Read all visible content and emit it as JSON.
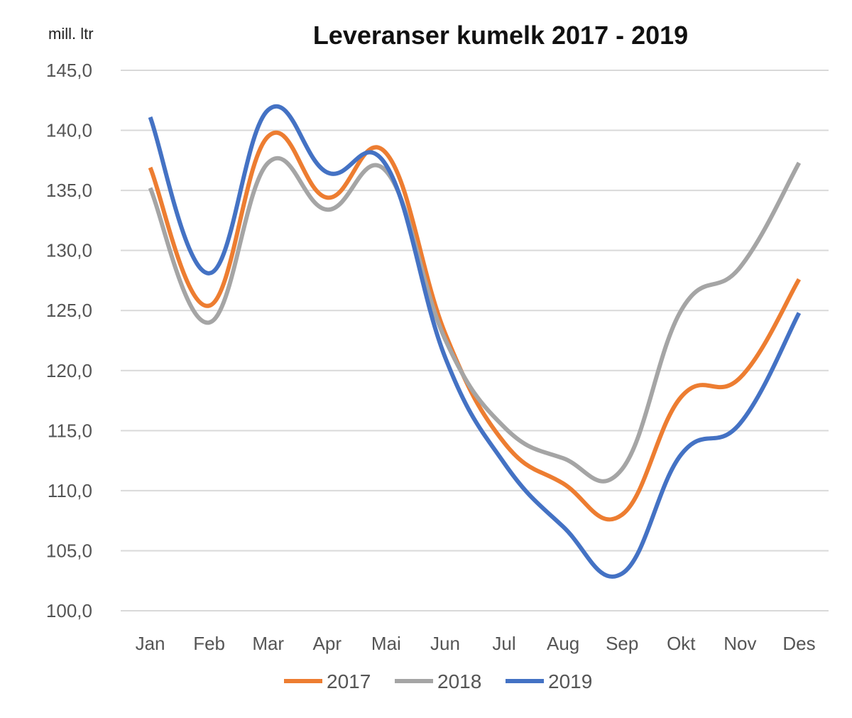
{
  "chart_data": {
    "type": "line",
    "title": "Leveranser kumelk 2017 - 2019",
    "ylabel": "mill. ltr",
    "xlabel": "",
    "categories": [
      "Jan",
      "Feb",
      "Mar",
      "Apr",
      "Mai",
      "Jun",
      "Jul",
      "Aug",
      "Sep",
      "Okt",
      "Nov",
      "Des"
    ],
    "ylim": [
      100,
      145
    ],
    "yticks": [
      100,
      105,
      110,
      115,
      120,
      125,
      130,
      135,
      140,
      145
    ],
    "ytick_labels": [
      "100,0",
      "105,0",
      "110,0",
      "115,0",
      "120,0",
      "125,0",
      "130,0",
      "135,0",
      "140,0",
      "145,0"
    ],
    "grid": true,
    "smooth": true,
    "legend_position": "bottom",
    "series": [
      {
        "name": "2017",
        "color": "#ED7D31",
        "values": [
          136.9,
          125.4,
          139.5,
          134.4,
          138.1,
          123.1,
          114.0,
          110.6,
          108.0,
          117.8,
          119.4,
          127.6
        ]
      },
      {
        "name": "2018",
        "color": "#A5A5A5",
        "values": [
          135.2,
          124.0,
          137.3,
          133.4,
          136.6,
          122.6,
          115.3,
          112.7,
          111.8,
          125.0,
          128.6,
          137.3
        ]
      },
      {
        "name": "2019",
        "color": "#4472C4",
        "values": [
          141.1,
          128.1,
          141.7,
          136.5,
          137.1,
          121.1,
          112.3,
          107.0,
          103.1,
          113.0,
          115.6,
          124.8
        ]
      }
    ]
  }
}
